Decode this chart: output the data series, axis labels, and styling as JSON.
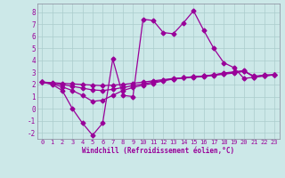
{
  "x_values": [
    0,
    1,
    2,
    3,
    4,
    5,
    6,
    7,
    8,
    9,
    10,
    11,
    12,
    13,
    14,
    15,
    16,
    17,
    18,
    19,
    20,
    21,
    22,
    23
  ],
  "line1_y": [
    2.2,
    2.0,
    1.5,
    0.0,
    -1.2,
    -2.2,
    -1.2,
    4.1,
    1.1,
    1.0,
    7.4,
    7.3,
    6.3,
    6.2,
    7.1,
    8.1,
    6.5,
    5.0,
    3.8,
    3.4,
    2.5,
    2.6,
    2.8,
    2.8
  ],
  "line2_y": [
    2.2,
    2.15,
    2.1,
    2.05,
    2.0,
    1.95,
    1.9,
    1.95,
    2.0,
    2.1,
    2.2,
    2.3,
    2.4,
    2.5,
    2.55,
    2.6,
    2.65,
    2.75,
    2.85,
    2.95,
    3.1,
    2.7,
    2.75,
    2.8
  ],
  "line3_y": [
    2.2,
    2.1,
    2.0,
    1.85,
    1.7,
    1.55,
    1.5,
    1.6,
    1.75,
    1.9,
    2.05,
    2.2,
    2.35,
    2.45,
    2.55,
    2.65,
    2.7,
    2.8,
    2.9,
    3.0,
    3.1,
    2.65,
    2.72,
    2.8
  ],
  "line4_y": [
    2.2,
    2.05,
    1.8,
    1.5,
    1.1,
    0.6,
    0.7,
    1.1,
    1.5,
    1.75,
    1.95,
    2.1,
    2.3,
    2.45,
    2.55,
    2.65,
    2.7,
    2.8,
    2.95,
    3.05,
    3.15,
    2.6,
    2.7,
    2.8
  ],
  "line_color": "#990099",
  "bg_color": "#cce8e8",
  "grid_color": "#aacccc",
  "xlabel": "Windchill (Refroidissement éolien,°C)",
  "ylim": [
    -2.5,
    8.7
  ],
  "xlim": [
    -0.5,
    23.5
  ],
  "yticks": [
    -2,
    -1,
    0,
    1,
    2,
    3,
    4,
    5,
    6,
    7,
    8
  ],
  "xticks": [
    0,
    1,
    2,
    3,
    4,
    5,
    6,
    7,
    8,
    9,
    10,
    11,
    12,
    13,
    14,
    15,
    16,
    17,
    18,
    19,
    20,
    21,
    22,
    23
  ]
}
